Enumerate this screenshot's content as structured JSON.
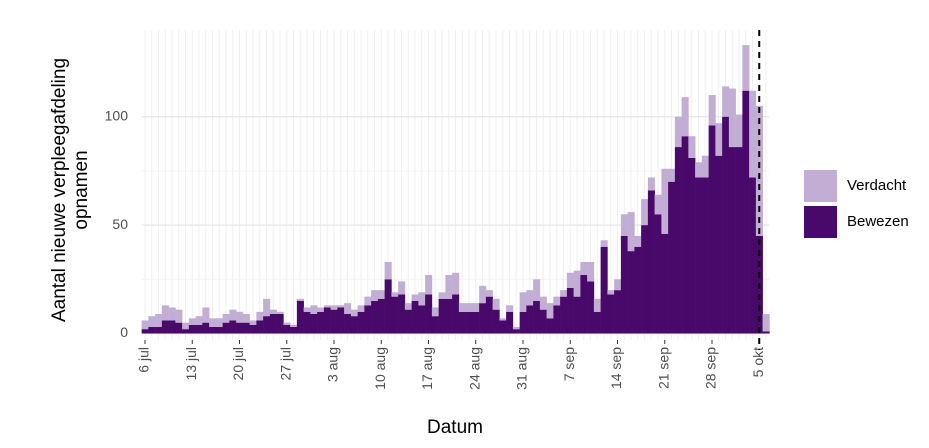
{
  "chart_data": {
    "type": "bar",
    "stacked": true,
    "x_label": "Datum",
    "y_label_lines": [
      "Aantal nieuwe verpleegafdeling",
      "opnamen"
    ],
    "categories": [
      "6 jul",
      null,
      null,
      null,
      null,
      null,
      null,
      "13 jul",
      null,
      null,
      null,
      null,
      null,
      null,
      "20 jul",
      null,
      null,
      null,
      null,
      null,
      null,
      "27 jul",
      null,
      null,
      null,
      null,
      null,
      null,
      "3 aug",
      null,
      null,
      null,
      null,
      null,
      null,
      "10 aug",
      null,
      null,
      null,
      null,
      null,
      null,
      "17 aug",
      null,
      null,
      null,
      null,
      null,
      null,
      "24 aug",
      null,
      null,
      null,
      null,
      null,
      null,
      "31 aug",
      null,
      null,
      null,
      null,
      null,
      null,
      "7 sep",
      null,
      null,
      null,
      null,
      null,
      null,
      "14 sep",
      null,
      null,
      null,
      null,
      null,
      null,
      "21 sep",
      null,
      null,
      null,
      null,
      null,
      null,
      "28 sep",
      null,
      null,
      null,
      null,
      null,
      null,
      "5 okt",
      null
    ],
    "series": [
      {
        "name": "Verdacht",
        "color": "#c2aed4",
        "values": [
          4,
          5,
          6,
          7,
          6,
          6,
          3,
          3,
          4,
          7,
          4,
          4,
          4,
          5,
          5,
          4,
          2,
          4,
          8,
          2,
          1,
          1,
          1,
          1,
          2,
          4,
          2,
          1,
          2,
          1,
          5,
          3,
          3,
          4,
          5,
          4,
          8,
          2,
          6,
          3,
          3,
          6,
          9,
          4,
          3,
          11,
          10,
          4,
          4,
          4,
          8,
          3,
          5,
          1,
          3,
          1,
          9,
          7,
          10,
          6,
          7,
          4,
          3,
          7,
          12,
          6,
          9,
          6,
          3,
          2,
          5,
          10,
          18,
          5,
          12,
          6,
          9,
          30,
          6,
          14,
          18,
          10,
          7,
          10,
          14,
          15,
          14,
          27,
          15,
          21,
          40,
          60,
          8
        ]
      },
      {
        "name": "Bewezen",
        "color": "#48096a",
        "values": [
          2,
          3,
          3,
          6,
          6,
          5,
          2,
          4,
          4,
          5,
          3,
          3,
          5,
          6,
          5,
          5,
          4,
          6,
          8,
          9,
          9,
          4,
          3,
          15,
          10,
          9,
          10,
          12,
          11,
          12,
          9,
          8,
          10,
          13,
          15,
          16,
          25,
          17,
          18,
          11,
          15,
          13,
          18,
          8,
          16,
          16,
          18,
          10,
          10,
          10,
          14,
          17,
          11,
          6,
          10,
          2,
          10,
          13,
          15,
          11,
          7,
          13,
          17,
          21,
          17,
          27,
          24,
          10,
          40,
          18,
          20,
          45,
          38,
          40,
          50,
          66,
          55,
          46,
          70,
          86,
          91,
          81,
          72,
          72,
          96,
          82,
          100,
          86,
          86,
          112,
          72,
          45,
          1
        ]
      }
    ],
    "ylim": [
      -3,
      140
    ],
    "yticks": [
      0,
      50,
      100
    ],
    "grid": true,
    "legend": "right",
    "reference_line": {
      "at": "5 okt",
      "style": "dashed"
    }
  }
}
